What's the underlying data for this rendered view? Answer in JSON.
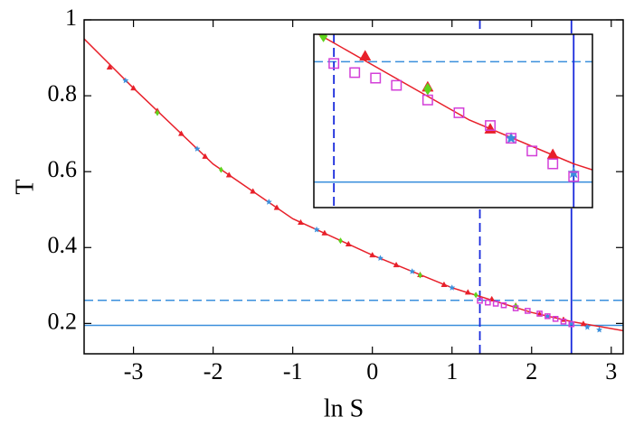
{
  "chart_data": {
    "type": "scatter",
    "xlabel": "ln S",
    "ylabel": "T",
    "xlim": [
      -3.62,
      3.15
    ],
    "ylim": [
      0.12,
      1.0
    ],
    "xticks": [
      -3,
      -2,
      -1,
      0,
      1,
      2,
      3
    ],
    "yticks": [
      0.2,
      0.4,
      0.6,
      0.8,
      1
    ],
    "curve": {
      "color": "#e8202a",
      "x": [
        -3.62,
        -3,
        -2,
        -1,
        0,
        1,
        2,
        2.5,
        3.15
      ],
      "values": [
        0.95,
        0.82,
        0.62,
        0.476,
        0.38,
        0.294,
        0.229,
        0.205,
        0.181
      ]
    },
    "hlines": [
      {
        "value": 0.261,
        "style": "dashed",
        "color": "#3a8fdc"
      },
      {
        "value": 0.195,
        "style": "solid",
        "color": "#3a8fdc"
      }
    ],
    "vlines": [
      {
        "value": 1.35,
        "style": "dashed",
        "color": "#1a2bdc"
      },
      {
        "value": 2.5,
        "style": "solid",
        "color": "#1a2bdc"
      }
    ],
    "series": [
      {
        "marker": "triangle",
        "color": "#e8202a",
        "x": [
          -3.3,
          -3.0,
          -2.7,
          -2.4,
          -2.1,
          -1.8,
          -1.5,
          -1.2,
          -0.9,
          -0.6,
          -0.3,
          0,
          0.3,
          0.6,
          0.9,
          1.2,
          1.5,
          1.8,
          2.1,
          2.4,
          2.65
        ],
        "values": [
          0.875,
          0.82,
          0.76,
          0.7,
          0.64,
          0.591,
          0.548,
          0.505,
          0.466,
          0.438,
          0.409,
          0.38,
          0.354,
          0.328,
          0.302,
          0.282,
          0.264,
          0.247,
          0.224,
          0.21,
          0.199
        ]
      },
      {
        "marker": "star",
        "color": "#3a8fdc",
        "x": [
          -3.1,
          -2.2,
          -1.3,
          -0.7,
          0.1,
          0.5,
          1.0,
          2.2,
          2.5,
          2.7,
          2.85
        ],
        "values": [
          0.84,
          0.66,
          0.52,
          0.447,
          0.372,
          0.337,
          0.294,
          0.219,
          0.2,
          0.19,
          0.183
        ]
      },
      {
        "marker": "diamond",
        "color": "#5fd31c",
        "x": [
          -2.7,
          -1.9,
          -0.4,
          0.6,
          1.3,
          1.8
        ],
        "values": [
          0.755,
          0.605,
          0.418,
          0.327,
          0.275,
          0.246
        ]
      },
      {
        "marker": "square",
        "color": "#d33fd8",
        "x": [
          1.35,
          1.45,
          1.55,
          1.65,
          1.8,
          1.95,
          2.1,
          2.2,
          2.3,
          2.4,
          2.5
        ],
        "values": [
          0.26,
          0.255,
          0.252,
          0.248,
          0.24,
          0.233,
          0.226,
          0.219,
          0.212,
          0.205,
          0.198
        ]
      }
    ],
    "inset": {
      "xlim": [
        1.254,
        2.59
      ],
      "ylim": [
        0.181,
        0.276
      ]
    }
  }
}
